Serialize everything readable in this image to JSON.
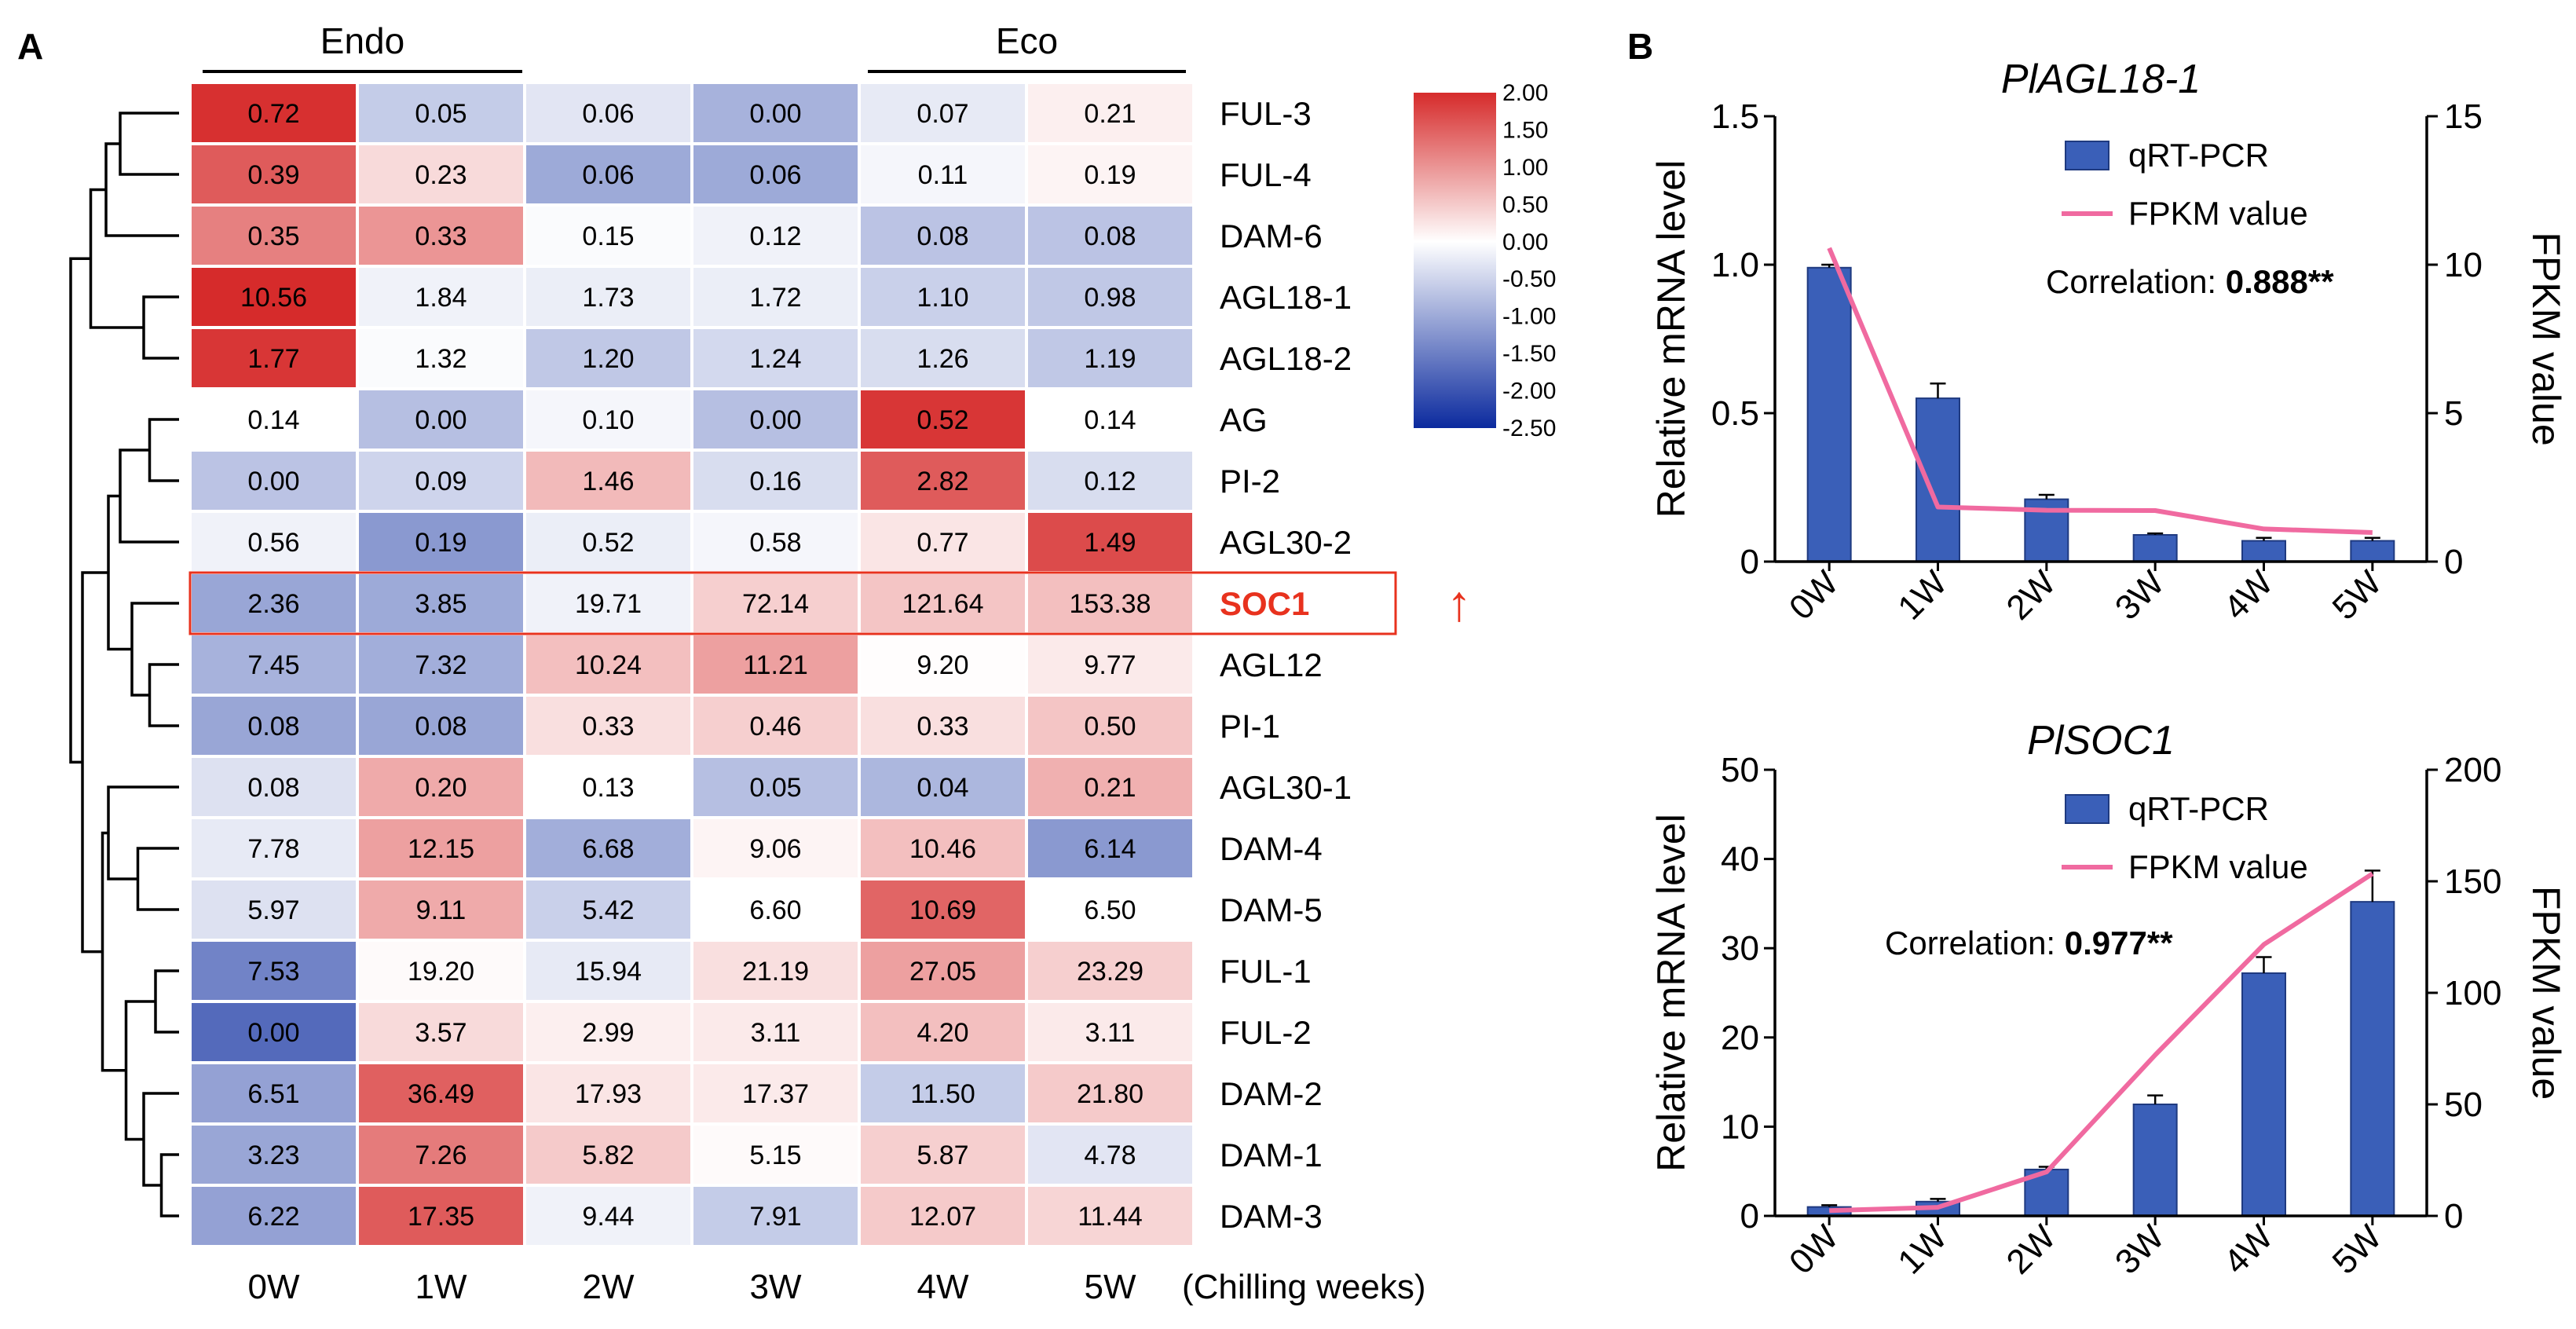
{
  "panel_labels": {
    "a": "A",
    "b": "B"
  },
  "heatmap_data": {
    "type": "heatmap",
    "group_labels": [
      "Endo",
      "Eco"
    ],
    "columns": [
      "0W",
      "1W",
      "2W",
      "3W",
      "4W",
      "5W"
    ],
    "x_suffix": "(Chilling weeks)",
    "highlight_row": "SOC1",
    "highlight_arrow": "↑",
    "colors": {
      "low": "#0b2a9e",
      "mid": "#ffffff",
      "high": "#d62b2b",
      "highlight": "#e8321e"
    },
    "scale": {
      "min": -2.5,
      "max": 2.0,
      "ticks": [
        "2.00",
        "1.50",
        "1.00",
        "0.50",
        "0.00",
        "-0.50",
        "-1.00",
        "-1.50",
        "-2.00",
        "-2.50"
      ]
    },
    "rows": [
      {
        "gene": "FUL-3",
        "labels": [
          "0.72",
          "0.05",
          "0.06",
          "0.00",
          "0.07",
          "0.21"
        ]
      },
      {
        "gene": "FUL-4",
        "labels": [
          "0.39",
          "0.23",
          "0.06",
          "0.06",
          "0.11",
          "0.19"
        ]
      },
      {
        "gene": "DAM-6",
        "labels": [
          "0.35",
          "0.33",
          "0.15",
          "0.12",
          "0.08",
          "0.08"
        ]
      },
      {
        "gene": "AGL18-1",
        "labels": [
          "10.56",
          "1.84",
          "1.73",
          "1.72",
          "1.10",
          "0.98"
        ]
      },
      {
        "gene": "AGL18-2",
        "labels": [
          "1.77",
          "1.32",
          "1.20",
          "1.24",
          "1.26",
          "1.19"
        ]
      },
      {
        "gene": "AG",
        "labels": [
          "0.14",
          "0.00",
          "0.10",
          "0.00",
          "0.52",
          "0.14"
        ]
      },
      {
        "gene": "PI-2",
        "labels": [
          "0.00",
          "0.09",
          "1.46",
          "0.16",
          "2.82",
          "0.12"
        ]
      },
      {
        "gene": "AGL30-2",
        "labels": [
          "0.56",
          "0.19",
          "0.52",
          "0.58",
          "0.77",
          "1.49"
        ]
      },
      {
        "gene": "SOC1",
        "labels": [
          "2.36",
          "3.85",
          "19.71",
          "72.14",
          "121.64",
          "153.38"
        ]
      },
      {
        "gene": "AGL12",
        "labels": [
          "7.45",
          "7.32",
          "10.24",
          "11.21",
          "9.20",
          "9.77"
        ]
      },
      {
        "gene": "PI-1",
        "labels": [
          "0.08",
          "0.08",
          "0.33",
          "0.46",
          "0.33",
          "0.50"
        ]
      },
      {
        "gene": "AGL30-1",
        "labels": [
          "0.08",
          "0.20",
          "0.13",
          "0.05",
          "0.04",
          "0.21"
        ]
      },
      {
        "gene": "DAM-4",
        "labels": [
          "7.78",
          "12.15",
          "6.68",
          "9.06",
          "10.46",
          "6.14"
        ]
      },
      {
        "gene": "DAM-5",
        "labels": [
          "5.97",
          "9.11",
          "5.42",
          "6.60",
          "10.69",
          "6.50"
        ]
      },
      {
        "gene": "FUL-1",
        "labels": [
          "7.53",
          "19.20",
          "15.94",
          "21.19",
          "27.05",
          "23.29"
        ]
      },
      {
        "gene": "FUL-2",
        "labels": [
          "0.00",
          "3.57",
          "2.99",
          "3.11",
          "4.20",
          "3.11"
        ]
      },
      {
        "gene": "DAM-2",
        "labels": [
          "6.51",
          "36.49",
          "17.93",
          "17.37",
          "11.50",
          "21.80"
        ]
      },
      {
        "gene": "DAM-1",
        "labels": [
          "3.23",
          "7.26",
          "5.82",
          "5.15",
          "5.87",
          "4.78"
        ]
      },
      {
        "gene": "DAM-3",
        "labels": [
          "6.22",
          "17.35",
          "9.44",
          "7.91",
          "12.07",
          "11.44"
        ]
      }
    ],
    "zscores": [
      [
        1.95,
        -0.6,
        -0.3,
        -0.9,
        -0.25,
        0.15
      ],
      [
        1.55,
        0.35,
        -1.0,
        -1.0,
        -0.1,
        0.1
      ],
      [
        1.2,
        1.0,
        -0.05,
        -0.15,
        -0.7,
        -0.7
      ],
      [
        2.0,
        -0.15,
        -0.2,
        -0.2,
        -0.55,
        -0.65
      ],
      [
        1.9,
        -0.05,
        -0.65,
        -0.45,
        -0.4,
        -0.65
      ],
      [
        0.0,
        -0.75,
        -0.1,
        -0.75,
        1.9,
        0.0
      ],
      [
        -0.7,
        -0.5,
        0.65,
        -0.4,
        1.55,
        -0.4
      ],
      [
        -0.15,
        -1.2,
        -0.2,
        -0.1,
        0.25,
        1.7
      ],
      [
        -1.05,
        -1.0,
        -0.15,
        0.45,
        0.55,
        0.6
      ],
      [
        -0.9,
        -0.95,
        0.6,
        0.9,
        0.02,
        0.2
      ],
      [
        -1.05,
        -1.05,
        0.3,
        0.45,
        0.3,
        0.55
      ],
      [
        -0.35,
        0.8,
        0.0,
        -0.75,
        -0.85,
        0.75
      ],
      [
        -0.25,
        0.9,
        -0.95,
        0.1,
        0.6,
        -1.2
      ],
      [
        -0.35,
        0.8,
        -0.55,
        0.0,
        1.45,
        0.0
      ],
      [
        -1.45,
        0.05,
        -0.25,
        0.3,
        0.9,
        0.45
      ],
      [
        -1.75,
        0.35,
        0.15,
        0.2,
        0.6,
        0.2
      ],
      [
        -1.1,
        1.5,
        0.25,
        0.2,
        -0.6,
        0.5
      ],
      [
        -1.05,
        1.25,
        0.5,
        0.05,
        0.45,
        -0.3
      ],
      [
        -1.1,
        1.55,
        -0.15,
        -0.6,
        0.5,
        0.4
      ]
    ],
    "dendrogram": {
      "order": [
        "FUL-3",
        "FUL-4",
        "DAM-6",
        "AGL18-1",
        "AGL18-2",
        "AG",
        "PI-2",
        "AGL30-2",
        "SOC1",
        "AGL12",
        "PI-1",
        "AGL30-1",
        "DAM-4",
        "DAM-5",
        "FUL-1",
        "FUL-2",
        "DAM-2",
        "DAM-1",
        "DAM-3"
      ],
      "merges": [
        [
          3,
          4,
          0.3
        ],
        [
          0,
          1,
          0.5
        ],
        [
          20,
          2,
          0.62
        ],
        [
          19,
          21,
          0.75
        ],
        [
          5,
          6,
          0.25
        ],
        [
          23,
          7,
          0.5
        ],
        [
          9,
          10,
          0.25
        ],
        [
          8,
          25,
          0.4
        ],
        [
          24,
          26,
          0.6
        ],
        [
          12,
          13,
          0.35
        ],
        [
          11,
          28,
          0.6
        ],
        [
          14,
          15,
          0.2
        ],
        [
          17,
          18,
          0.15
        ],
        [
          16,
          31,
          0.3
        ],
        [
          30,
          32,
          0.45
        ],
        [
          29,
          33,
          0.65
        ],
        [
          27,
          34,
          0.82
        ],
        [
          22,
          35,
          0.92
        ]
      ]
    }
  },
  "chart_data": [
    {
      "type": "bar+line",
      "title": "PlAGL18-1",
      "categories": [
        "0W",
        "1W",
        "2W",
        "3W",
        "4W",
        "5W"
      ],
      "series": [
        {
          "name": "qRT-PCR",
          "axis": "left",
          "values": [
            0.99,
            0.55,
            0.21,
            0.09,
            0.07,
            0.07
          ],
          "errors": [
            0.01,
            0.05,
            0.015,
            0.005,
            0.01,
            0.01
          ]
        },
        {
          "name": "FPKM value",
          "axis": "right",
          "values": [
            10.56,
            1.84,
            1.73,
            1.72,
            1.1,
            0.98
          ]
        }
      ],
      "ylabel": "Relative mRNA level",
      "y2label": "FPKM value",
      "ylim": [
        0,
        1.5
      ],
      "yticks": [
        "0",
        "0.5",
        "1.0",
        "1.5"
      ],
      "y2lim": [
        0,
        15
      ],
      "y2ticks": [
        "0",
        "5",
        "10",
        "15"
      ],
      "correlation_label": "Correlation: ",
      "correlation_value": "0.888**",
      "colors": {
        "bar": "#3a5fb8",
        "bar_edge": "#1f3a80",
        "line": "#f06aa0"
      }
    },
    {
      "type": "bar+line",
      "title": "PlSOC1",
      "categories": [
        "0W",
        "1W",
        "2W",
        "3W",
        "4W",
        "5W"
      ],
      "series": [
        {
          "name": "qRT-PCR",
          "axis": "left",
          "values": [
            1.0,
            1.6,
            5.2,
            12.5,
            27.2,
            35.2
          ],
          "errors": [
            0.2,
            0.3,
            0.3,
            1.0,
            1.8,
            3.5
          ]
        },
        {
          "name": "FPKM value",
          "axis": "right",
          "values": [
            2.36,
            3.85,
            19.71,
            72.14,
            121.64,
            153.38
          ]
        }
      ],
      "ylabel": "Relative mRNA level",
      "y2label": "FPKM value",
      "ylim": [
        0,
        50
      ],
      "yticks": [
        "0",
        "10",
        "20",
        "30",
        "40",
        "50"
      ],
      "y2lim": [
        0,
        200
      ],
      "y2ticks": [
        "0",
        "50",
        "100",
        "150",
        "200"
      ],
      "correlation_label": "Correlation: ",
      "correlation_value": "0.977**",
      "colors": {
        "bar": "#3a5fb8",
        "bar_edge": "#1f3a80",
        "line": "#f06aa0"
      }
    }
  ]
}
